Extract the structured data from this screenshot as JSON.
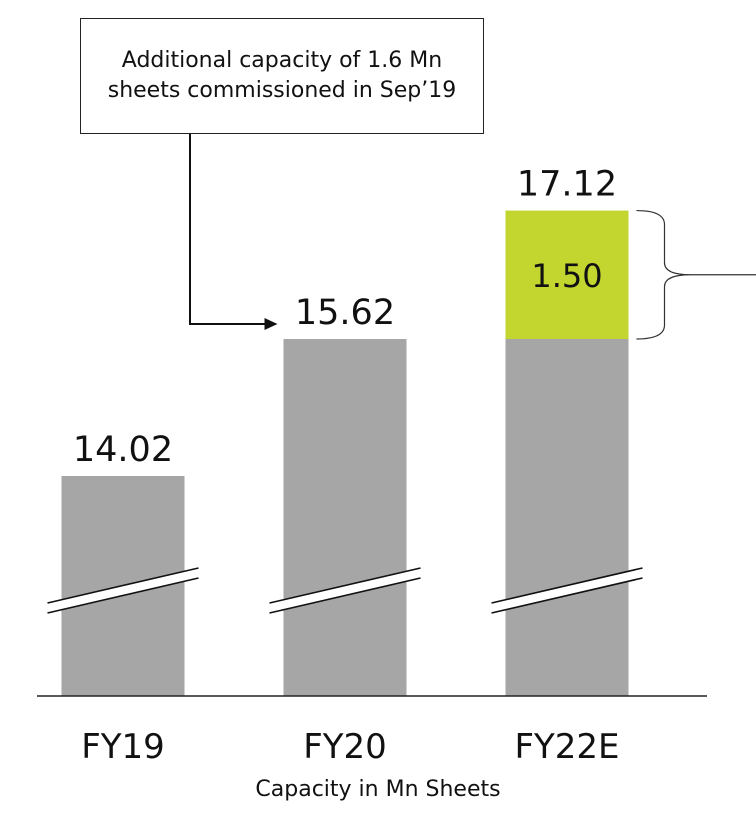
{
  "chart_data": {
    "type": "bar",
    "categories": [
      "FY19",
      "FY20",
      "FY22E"
    ],
    "values": [
      14.02,
      15.62,
      17.12
    ],
    "stacked_increment": {
      "category": "FY22E",
      "base": 15.62,
      "increment": 1.5,
      "increment_label": "1.50"
    },
    "value_labels": [
      "14.02",
      "15.62",
      "17.12"
    ],
    "axis_break": true,
    "caption": "Capacity in Mn Sheets",
    "colors": {
      "bar": "#a6a6a6",
      "increment": "#c2d62f",
      "axis": "#222222"
    }
  },
  "annotation": {
    "text": "Additional capacity of 1.6 Mn sheets commissioned in Sep’19",
    "target_category": "FY20"
  }
}
